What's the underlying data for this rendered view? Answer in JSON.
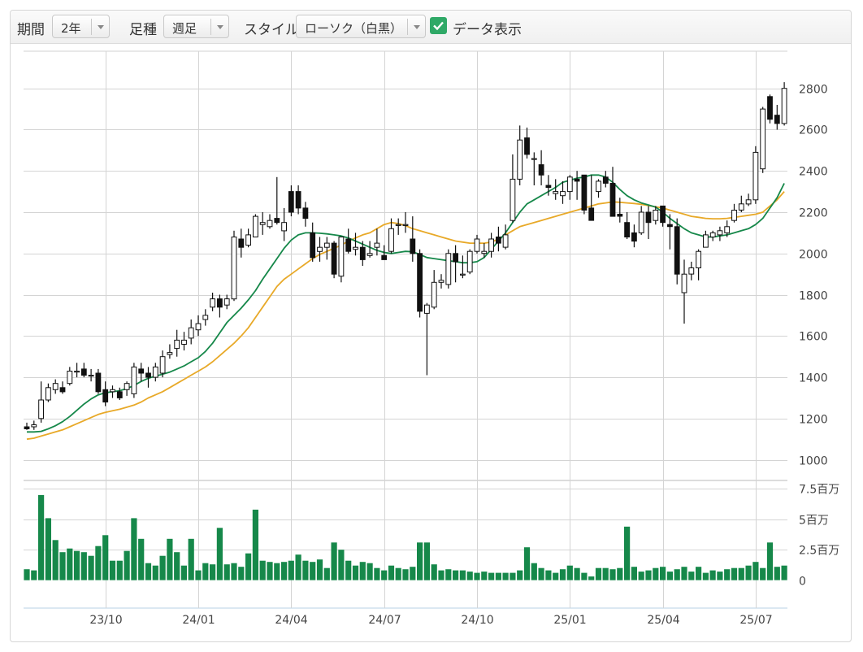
{
  "toolbar": {
    "period_label": "期間",
    "period_value": "2年",
    "foot_label": "足種",
    "foot_value": "週足",
    "style_label": "スタイル",
    "style_value": "ローソク（白黒）",
    "show_data_label": "データ表示",
    "show_data_checked": true
  },
  "colors": {
    "ma_short": "#16884a",
    "ma_long": "#e8a928",
    "volume": "#16884a",
    "candle_up_fill": "#ffffff",
    "candle_down_fill": "#111111",
    "check": "#2fa967"
  },
  "chart_data": {
    "type": "candlestick",
    "price_axis": {
      "ticks": [
        1000,
        1200,
        1400,
        1600,
        1800,
        2000,
        2200,
        2400,
        2600,
        2800
      ],
      "range": [
        900,
        2980
      ]
    },
    "volume_axis": {
      "ticks": [
        "0",
        "2.5百万",
        "5百万",
        "7.5百万"
      ],
      "values": [
        0,
        2.5,
        5,
        7.5
      ],
      "range": [
        -2.3,
        8.2
      ],
      "unit": "百万"
    },
    "x_ticks": [
      {
        "label": "23/10",
        "index": 11
      },
      {
        "label": "24/01",
        "index": 24
      },
      {
        "label": "24/04",
        "index": 37
      },
      {
        "label": "24/07",
        "index": 50
      },
      {
        "label": "24/10",
        "index": 63
      },
      {
        "label": "25/01",
        "index": 76
      },
      {
        "label": "25/04",
        "index": 89
      },
      {
        "label": "25/07",
        "index": 102
      }
    ],
    "candles": [
      [
        1160,
        1180,
        1145,
        1150
      ],
      [
        1160,
        1190,
        1145,
        1170
      ],
      [
        1200,
        1380,
        1180,
        1290
      ],
      [
        1290,
        1370,
        1280,
        1350
      ],
      [
        1340,
        1390,
        1320,
        1370
      ],
      [
        1350,
        1380,
        1320,
        1330
      ],
      [
        1370,
        1450,
        1360,
        1430
      ],
      [
        1430,
        1470,
        1400,
        1430
      ],
      [
        1440,
        1470,
        1400,
        1410
      ],
      [
        1410,
        1440,
        1380,
        1410
      ],
      [
        1420,
        1440,
        1320,
        1330
      ],
      [
        1340,
        1380,
        1260,
        1280
      ],
      [
        1330,
        1360,
        1300,
        1340
      ],
      [
        1330,
        1350,
        1290,
        1300
      ],
      [
        1340,
        1380,
        1310,
        1370
      ],
      [
        1320,
        1470,
        1300,
        1450
      ],
      [
        1440,
        1470,
        1380,
        1420
      ],
      [
        1420,
        1450,
        1350,
        1400
      ],
      [
        1400,
        1470,
        1380,
        1450
      ],
      [
        1420,
        1530,
        1400,
        1500
      ],
      [
        1510,
        1560,
        1490,
        1520
      ],
      [
        1540,
        1630,
        1500,
        1580
      ],
      [
        1560,
        1620,
        1530,
        1580
      ],
      [
        1590,
        1680,
        1560,
        1640
      ],
      [
        1630,
        1700,
        1600,
        1660
      ],
      [
        1680,
        1730,
        1650,
        1700
      ],
      [
        1740,
        1810,
        1720,
        1780
      ],
      [
        1780,
        1800,
        1690,
        1740
      ],
      [
        1750,
        1800,
        1730,
        1780
      ],
      [
        1780,
        2110,
        1770,
        2080
      ],
      [
        2070,
        2120,
        1980,
        2030
      ],
      [
        2040,
        2120,
        2030,
        2090
      ],
      [
        2080,
        2190,
        2080,
        2180
      ],
      [
        2140,
        2200,
        2090,
        2150
      ],
      [
        2130,
        2190,
        2120,
        2160
      ],
      [
        2170,
        2370,
        2140,
        2150
      ],
      [
        2110,
        2220,
        2060,
        2150
      ],
      [
        2300,
        2330,
        2180,
        2200
      ],
      [
        2300,
        2330,
        2190,
        2220
      ],
      [
        2220,
        2250,
        2130,
        2170
      ],
      [
        2100,
        2150,
        1960,
        1980
      ],
      [
        2010,
        2080,
        1960,
        2030
      ],
      [
        2030,
        2080,
        1970,
        2050
      ],
      [
        2050,
        2060,
        1880,
        1900
      ],
      [
        1890,
        2070,
        1860,
        2080
      ],
      [
        2070,
        2120,
        2000,
        2010
      ],
      [
        2020,
        2100,
        1990,
        2030
      ],
      [
        2030,
        2060,
        1940,
        1970
      ],
      [
        1990,
        2060,
        1980,
        2000
      ],
      [
        2030,
        2120,
        1990,
        2050
      ],
      [
        1990,
        2040,
        1970,
        1970
      ],
      [
        2010,
        2170,
        2000,
        2120
      ],
      [
        2140,
        2170,
        2090,
        2140
      ],
      [
        2140,
        2200,
        2100,
        2140
      ],
      [
        2070,
        2180,
        1960,
        2000
      ],
      [
        2000,
        2020,
        1690,
        1720
      ],
      [
        1710,
        1760,
        1410,
        1750
      ],
      [
        1740,
        1920,
        1730,
        1860
      ],
      [
        1860,
        1900,
        1830,
        1870
      ],
      [
        1850,
        2020,
        1830,
        2000
      ],
      [
        2000,
        2040,
        1860,
        1960
      ],
      [
        1900,
        1990,
        1880,
        1900
      ],
      [
        1910,
        2020,
        1900,
        2010
      ],
      [
        2010,
        2090,
        2000,
        2070
      ],
      [
        2000,
        2050,
        1980,
        2010
      ],
      [
        2010,
        2100,
        1980,
        2070
      ],
      [
        2080,
        2130,
        2010,
        2050
      ],
      [
        2030,
        2140,
        2020,
        2090
      ],
      [
        2160,
        2480,
        2150,
        2360
      ],
      [
        2360,
        2620,
        2330,
        2550
      ],
      [
        2560,
        2610,
        2460,
        2480
      ],
      [
        2460,
        2490,
        2330,
        2460
      ],
      [
        2430,
        2500,
        2330,
        2380
      ],
      [
        2330,
        2380,
        2280,
        2320
      ],
      [
        2290,
        2360,
        2260,
        2300
      ],
      [
        2280,
        2350,
        2240,
        2300
      ],
      [
        2300,
        2380,
        2260,
        2370
      ],
      [
        2360,
        2400,
        2260,
        2350
      ],
      [
        2380,
        2380,
        2190,
        2210
      ],
      [
        2220,
        2380,
        2160,
        2160
      ],
      [
        2300,
        2360,
        2270,
        2350
      ],
      [
        2370,
        2400,
        2320,
        2340
      ],
      [
        2340,
        2420,
        2180,
        2180
      ],
      [
        2190,
        2270,
        2150,
        2180
      ],
      [
        2150,
        2200,
        2070,
        2080
      ],
      [
        2100,
        2140,
        2030,
        2060
      ],
      [
        2100,
        2230,
        2090,
        2200
      ],
      [
        2200,
        2230,
        2070,
        2150
      ],
      [
        2160,
        2230,
        2140,
        2210
      ],
      [
        2230,
        2230,
        2130,
        2150
      ],
      [
        2140,
        2190,
        2020,
        2130
      ],
      [
        2130,
        2170,
        1850,
        1900
      ],
      [
        1810,
        1970,
        1660,
        1900
      ],
      [
        1900,
        1960,
        1870,
        1930
      ],
      [
        1930,
        2020,
        1870,
        2010
      ],
      [
        2030,
        2110,
        2030,
        2090
      ],
      [
        2080,
        2110,
        2060,
        2100
      ],
      [
        2090,
        2130,
        2060,
        2110
      ],
      [
        2100,
        2160,
        2080,
        2130
      ],
      [
        2160,
        2240,
        2150,
        2210
      ],
      [
        2210,
        2280,
        2200,
        2240
      ],
      [
        2240,
        2290,
        2230,
        2260
      ],
      [
        2260,
        2520,
        2240,
        2490
      ],
      [
        2410,
        2710,
        2390,
        2700
      ],
      [
        2760,
        2770,
        2630,
        2650
      ],
      [
        2670,
        2720,
        2600,
        2630
      ],
      [
        2630,
        2830,
        2620,
        2800
      ]
    ],
    "ma_short": [
      1135,
      1135,
      1138,
      1150,
      1165,
      1185,
      1210,
      1240,
      1270,
      1295,
      1315,
      1325,
      1330,
      1335,
      1345,
      1360,
      1380,
      1395,
      1405,
      1415,
      1425,
      1440,
      1455,
      1475,
      1495,
      1525,
      1565,
      1615,
      1665,
      1700,
      1735,
      1775,
      1820,
      1875,
      1925,
      1975,
      2025,
      2065,
      2090,
      2100,
      2100,
      2098,
      2095,
      2090,
      2085,
      2075,
      2060,
      2045,
      2030,
      2015,
      2005,
      2000,
      2005,
      2010,
      2008,
      1995,
      1980,
      1975,
      1970,
      1965,
      1960,
      1955,
      1955,
      1960,
      1980,
      2020,
      2060,
      2100,
      2150,
      2200,
      2240,
      2260,
      2280,
      2300,
      2320,
      2345,
      2355,
      2365,
      2370,
      2380,
      2380,
      2370,
      2345,
      2310,
      2280,
      2260,
      2245,
      2235,
      2225,
      2200,
      2170,
      2145,
      2120,
      2100,
      2090,
      2080,
      2080,
      2085,
      2090,
      2100,
      2110,
      2120,
      2140,
      2170,
      2220,
      2270,
      2340
    ],
    "ma_long": [
      1100,
      1105,
      1115,
      1125,
      1135,
      1145,
      1160,
      1175,
      1190,
      1205,
      1220,
      1230,
      1238,
      1245,
      1255,
      1265,
      1280,
      1300,
      1315,
      1330,
      1350,
      1370,
      1390,
      1410,
      1430,
      1450,
      1475,
      1505,
      1535,
      1565,
      1600,
      1640,
      1690,
      1740,
      1790,
      1840,
      1875,
      1900,
      1925,
      1950,
      1975,
      1995,
      2010,
      2025,
      2040,
      2060,
      2075,
      2090,
      2100,
      2120,
      2140,
      2150,
      2145,
      2135,
      2120,
      2110,
      2100,
      2090,
      2080,
      2070,
      2060,
      2055,
      2050,
      2050,
      2050,
      2055,
      2070,
      2090,
      2110,
      2130,
      2140,
      2150,
      2160,
      2170,
      2180,
      2190,
      2200,
      2210,
      2220,
      2230,
      2240,
      2245,
      2250,
      2248,
      2245,
      2242,
      2238,
      2232,
      2226,
      2220,
      2210,
      2200,
      2190,
      2180,
      2175,
      2170,
      2168,
      2168,
      2170,
      2175,
      2180,
      2185,
      2190,
      2200,
      2230,
      2260,
      2300
    ],
    "volume": [
      0.9,
      0.8,
      7.0,
      5.1,
      3.3,
      2.3,
      2.6,
      2.4,
      2.3,
      2.0,
      2.8,
      3.7,
      1.6,
      1.6,
      2.4,
      5.1,
      3.4,
      1.4,
      1.2,
      2.0,
      3.4,
      2.3,
      1.2,
      3.4,
      0.8,
      1.4,
      1.3,
      4.3,
      1.3,
      1.4,
      1.1,
      2.2,
      5.8,
      1.6,
      1.5,
      1.4,
      1.5,
      1.6,
      2.1,
      1.6,
      1.5,
      1.7,
      1.0,
      3.1,
      2.5,
      1.6,
      1.2,
      1.5,
      1.4,
      1.0,
      0.8,
      1.2,
      1.0,
      0.9,
      1.1,
      3.1,
      3.1,
      1.3,
      0.8,
      0.9,
      0.8,
      0.8,
      0.7,
      0.6,
      0.7,
      0.6,
      0.6,
      0.6,
      0.6,
      0.8,
      2.7,
      1.4,
      1.0,
      0.8,
      0.6,
      0.9,
      1.2,
      1.0,
      0.6,
      0.3,
      1.0,
      1.0,
      0.9,
      1.0,
      4.4,
      1.1,
      0.7,
      0.8,
      1.0,
      1.1,
      0.7,
      0.9,
      1.1,
      0.7,
      1.1,
      0.6,
      0.8,
      0.7,
      0.9,
      1.0,
      1.0,
      1.2,
      1.5,
      1.0,
      3.1,
      1.1,
      1.2
    ]
  }
}
